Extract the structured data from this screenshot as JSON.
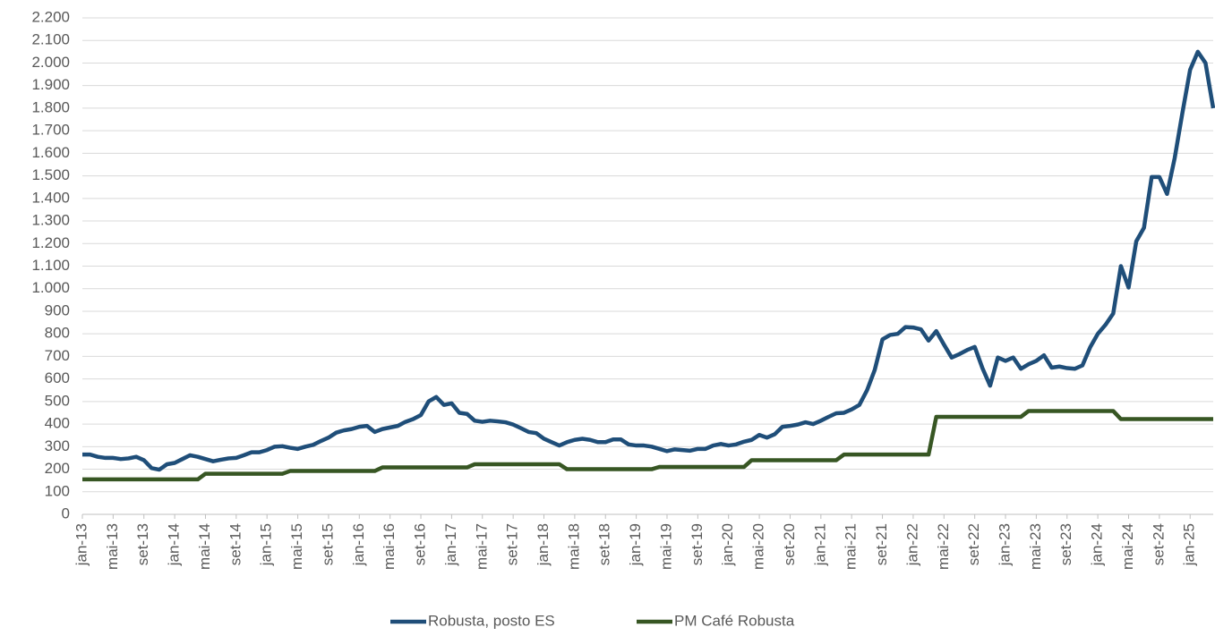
{
  "chart_data": {
    "type": "line",
    "categories": [
      "jan-13",
      null,
      null,
      null,
      "mai-13",
      null,
      null,
      null,
      "set-13",
      null,
      null,
      null,
      "jan-14",
      null,
      null,
      null,
      "mai-14",
      null,
      null,
      null,
      "set-14",
      null,
      null,
      null,
      "jan-15",
      null,
      null,
      null,
      "mai-15",
      null,
      null,
      null,
      "set-15",
      null,
      null,
      null,
      "jan-16",
      null,
      null,
      null,
      "mai-16",
      null,
      null,
      null,
      "set-16",
      null,
      null,
      null,
      "jan-17",
      null,
      null,
      null,
      "mai-17",
      null,
      null,
      null,
      "set-17",
      null,
      null,
      null,
      "jan-18",
      null,
      null,
      null,
      "mai-18",
      null,
      null,
      null,
      "set-18",
      null,
      null,
      null,
      "jan-19",
      null,
      null,
      null,
      "mai-19",
      null,
      null,
      null,
      "set-19",
      null,
      null,
      null,
      "jan-20",
      null,
      null,
      null,
      "mai-20",
      null,
      null,
      null,
      "set-20",
      null,
      null,
      null,
      "jan-21",
      null,
      null,
      null,
      "mai-21",
      null,
      null,
      null,
      "set-21",
      null,
      null,
      null,
      "jan-22",
      null,
      null,
      null,
      "mai-22",
      null,
      null,
      null,
      "set-22",
      null,
      null,
      null,
      "jan-23",
      null,
      null,
      null,
      "mai-23",
      null,
      null,
      null,
      "set-23",
      null,
      null,
      null,
      "jan-24",
      null,
      null,
      null,
      "mai-24",
      null,
      null,
      null,
      "set-24",
      null,
      null,
      null,
      "jan-25",
      null,
      null,
      null
    ],
    "series": [
      {
        "name": "Robusta, posto ES",
        "color": "#1f4e79",
        "values": [
          265,
          265,
          255,
          250,
          250,
          245,
          248,
          255,
          240,
          205,
          198,
          222,
          228,
          245,
          262,
          255,
          245,
          235,
          242,
          248,
          250,
          262,
          275,
          275,
          285,
          300,
          302,
          295,
          290,
          300,
          308,
          325,
          340,
          362,
          372,
          378,
          388,
          392,
          365,
          378,
          385,
          392,
          410,
          422,
          440,
          500,
          520,
          485,
          492,
          450,
          445,
          415,
          410,
          415,
          412,
          408,
          398,
          382,
          365,
          360,
          335,
          320,
          305,
          320,
          330,
          335,
          330,
          320,
          320,
          332,
          332,
          310,
          305,
          305,
          300,
          290,
          280,
          288,
          285,
          282,
          290,
          290,
          305,
          312,
          305,
          310,
          322,
          330,
          352,
          340,
          355,
          388,
          392,
          398,
          408,
          400,
          415,
          432,
          448,
          450,
          465,
          485,
          550,
          640,
          775,
          795,
          800,
          830,
          828,
          820,
          770,
          812,
          752,
          695,
          710,
          728,
          742,
          648,
          570,
          695,
          680,
          695,
          645,
          665,
          680,
          705,
          650,
          655,
          648,
          645,
          660,
          740,
          800,
          840,
          890,
          1100,
          1005,
          1210,
          1270,
          1495,
          1495,
          1420,
          1580,
          1780,
          1970,
          2050,
          2000,
          1800
        ]
      },
      {
        "name": "PM Café Robusta",
        "color": "#375623",
        "values": [
          155,
          155,
          155,
          155,
          155,
          155,
          155,
          155,
          155,
          155,
          155,
          155,
          155,
          155,
          155,
          155,
          180,
          180,
          180,
          180,
          180,
          180,
          180,
          180,
          180,
          180,
          180,
          192,
          192,
          192,
          192,
          192,
          192,
          192,
          192,
          192,
          192,
          192,
          192,
          208,
          208,
          208,
          208,
          208,
          208,
          208,
          208,
          208,
          208,
          208,
          208,
          222,
          222,
          222,
          222,
          222,
          222,
          222,
          222,
          222,
          222,
          222,
          222,
          200,
          200,
          200,
          200,
          200,
          200,
          200,
          200,
          200,
          200,
          200,
          200,
          210,
          210,
          210,
          210,
          210,
          210,
          210,
          210,
          210,
          210,
          210,
          210,
          240,
          240,
          240,
          240,
          240,
          240,
          240,
          240,
          240,
          240,
          240,
          240,
          265,
          265,
          265,
          265,
          265,
          265,
          265,
          265,
          265,
          265,
          265,
          265,
          432,
          432,
          432,
          432,
          432,
          432,
          432,
          432,
          432,
          432,
          432,
          432,
          458,
          458,
          458,
          458,
          458,
          458,
          458,
          458,
          458,
          458,
          458,
          458,
          422,
          422,
          422,
          422,
          422,
          422,
          422,
          422,
          422,
          422,
          422,
          422,
          422
        ]
      }
    ],
    "ylim": [
      0,
      2200
    ],
    "yticks": [
      0,
      100,
      200,
      300,
      400,
      500,
      600,
      700,
      800,
      900,
      {
        "value": 1000,
        "label": "1.000"
      },
      {
        "value": 1100,
        "label": "1.100"
      },
      {
        "value": 1200,
        "label": "1.200"
      },
      {
        "value": 1300,
        "label": "1.300"
      },
      {
        "value": 1400,
        "label": "1.400"
      },
      {
        "value": 1500,
        "label": "1.500"
      },
      {
        "value": 1600,
        "label": "1.600"
      },
      {
        "value": 1700,
        "label": "1.700"
      },
      {
        "value": 1800,
        "label": "1.800"
      },
      {
        "value": 1900,
        "label": "1.900"
      },
      {
        "value": 2000,
        "label": "2.000"
      },
      {
        "value": 2100,
        "label": "2.100"
      },
      {
        "value": 2200,
        "label": "2.200"
      }
    ],
    "grid": true,
    "legend": "bottom"
  }
}
